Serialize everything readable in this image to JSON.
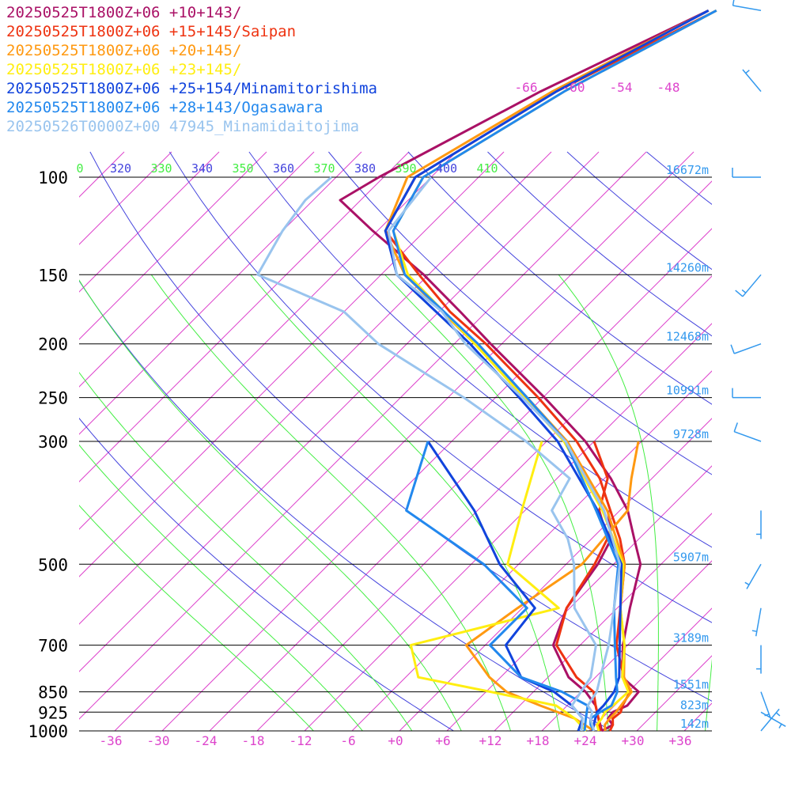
{
  "chart_data": {
    "type": "line",
    "title": "",
    "xlabel": "",
    "ylabel": "",
    "pressure_axis": {
      "type": "log",
      "ylim": [
        1000,
        100
      ],
      "ticks": [
        100,
        150,
        200,
        250,
        300,
        500,
        700,
        850,
        925,
        1000
      ]
    },
    "temperature_axis": {
      "xlim": [
        -40,
        40
      ],
      "ticks": [
        "-36",
        "-30",
        "-24",
        "-18",
        "-12",
        "-6",
        "+0",
        "+6",
        "+12",
        "+18",
        "+24",
        "+30",
        "+36"
      ]
    },
    "height_labels": [
      {
        "p": 100,
        "text": "16672m"
      },
      {
        "p": 150,
        "text": "14260m"
      },
      {
        "p": 200,
        "text": "12468m"
      },
      {
        "p": 250,
        "text": "10991m"
      },
      {
        "p": 300,
        "text": "9728m"
      },
      {
        "p": 500,
        "text": "5907m"
      },
      {
        "p": 700,
        "text": "3189m"
      },
      {
        "p": 850,
        "text": "1551m"
      },
      {
        "p": 925,
        "text": "823m"
      },
      {
        "p": 1000,
        "text": "142m"
      }
    ],
    "isotherm_labels": [
      "-66",
      "-60",
      "-54",
      "-48"
    ],
    "theta_labels": [
      {
        "text": "0",
        "color": "#44ee44"
      },
      {
        "text": "320",
        "color": "#4444dd"
      },
      {
        "text": "330",
        "color": "#44ee44"
      },
      {
        "text": "340",
        "color": "#4444dd"
      },
      {
        "text": "350",
        "color": "#44ee44"
      },
      {
        "text": "360",
        "color": "#4444dd"
      },
      {
        "text": "370",
        "color": "#44ee44"
      },
      {
        "text": "380",
        "color": "#4444dd"
      },
      {
        "text": "390",
        "color": "#44ee44"
      },
      {
        "text": "400",
        "color": "#4444dd"
      },
      {
        "text": "410",
        "color": "#44ee44"
      }
    ],
    "colors": {
      "isotherm": "#dd44cc",
      "dry_adiabat": "#4444dd",
      "moist_adiabat": "#44ee44",
      "isobar": "#000000",
      "height_label": "#3399ee",
      "wind_barb": "#3399ee"
    },
    "series": [
      {
        "name": "20250525T1800Z+06 +10+143/",
        "color": "#aa1166",
        "temperature": [
          [
            1000,
            25.6
          ],
          [
            975,
            26.2
          ],
          [
            950,
            24.8
          ],
          [
            925,
            24.6
          ],
          [
            900,
            25.6
          ],
          [
            850,
            25.3
          ],
          [
            800,
            21.4
          ],
          [
            700,
            17.4
          ],
          [
            600,
            13.6
          ],
          [
            500,
            9.4
          ],
          [
            450,
            5.4
          ],
          [
            400,
            1.0
          ],
          [
            350,
            -5.2
          ],
          [
            300,
            -13.1
          ],
          [
            250,
            -23.8
          ],
          [
            200,
            -37.4
          ],
          [
            175,
            -45.3
          ],
          [
            150,
            -54.6
          ],
          [
            125,
            -66.6
          ],
          [
            110,
            -74.6
          ],
          [
            100,
            -72.6
          ],
          [
            70,
            -63.0
          ],
          [
            50,
            -52.0
          ]
        ],
        "dewpoint": [
          [
            1000,
            25.6
          ],
          [
            950,
            23.6
          ],
          [
            900,
            21.6
          ],
          [
            850,
            18.6
          ],
          [
            800,
            14.6
          ],
          [
            700,
            8.6
          ],
          [
            600,
            5.6
          ],
          [
            500,
            4.0
          ],
          [
            450,
            2.5
          ],
          [
            400,
            -1.5
          ]
        ]
      },
      {
        "name": "20250525T1800Z+06 +15+145/Saipan",
        "color": "#ee3311",
        "temperature": [
          [
            1000,
            26.6
          ],
          [
            975,
            26.2
          ],
          [
            950,
            25.4
          ],
          [
            925,
            25.6
          ],
          [
            900,
            25.0
          ],
          [
            850,
            24.2
          ],
          [
            800,
            21.6
          ],
          [
            700,
            16.6
          ],
          [
            600,
            12.4
          ],
          [
            500,
            7.4
          ],
          [
            450,
            3.6
          ],
          [
            400,
            -1.2
          ],
          [
            350,
            -6.6
          ],
          [
            300,
            -14.2
          ],
          [
            250,
            -24.6
          ],
          [
            200,
            -38.0
          ],
          [
            175,
            -46.6
          ],
          [
            150,
            -55.2
          ],
          [
            125,
            -65.0
          ],
          [
            100,
            -68.0
          ],
          [
            70,
            -61.0
          ],
          [
            50,
            -51.0
          ]
        ],
        "dewpoint": [
          [
            1000,
            25.4
          ],
          [
            950,
            23.6
          ],
          [
            900,
            21.6
          ],
          [
            850,
            19.6
          ],
          [
            800,
            15.6
          ],
          [
            700,
            9.0
          ],
          [
            600,
            5.6
          ],
          [
            500,
            3.6
          ],
          [
            450,
            2.0
          ],
          [
            400,
            -2.6
          ],
          [
            350,
            -5.6
          ],
          [
            300,
            -12.0
          ]
        ]
      },
      {
        "name": "20250525T1800Z+06 +20+145/",
        "color": "#ff9911",
        "temperature": [
          [
            1000,
            26.0
          ],
          [
            975,
            25.2
          ],
          [
            950,
            25.0
          ],
          [
            925,
            25.0
          ],
          [
            900,
            24.8
          ],
          [
            850,
            24.4
          ],
          [
            800,
            21.6
          ],
          [
            700,
            17.6
          ],
          [
            600,
            12.4
          ],
          [
            500,
            7.4
          ],
          [
            400,
            -1.6
          ],
          [
            300,
            -15.4
          ],
          [
            250,
            -26.0
          ],
          [
            200,
            -39.4
          ],
          [
            150,
            -57.0
          ],
          [
            125,
            -65.0
          ],
          [
            100,
            -69.0
          ],
          [
            70,
            -61.5
          ],
          [
            50,
            -52.0
          ]
        ],
        "dewpoint": [
          [
            1000,
            24.6
          ],
          [
            950,
            20.6
          ],
          [
            900,
            14.6
          ],
          [
            850,
            8.6
          ],
          [
            800,
            4.6
          ],
          [
            700,
            -2.4
          ],
          [
            600,
            -0.6
          ],
          [
            500,
            2.0
          ],
          [
            400,
            1.0
          ],
          [
            350,
            -2.6
          ],
          [
            300,
            -6.4
          ]
        ]
      },
      {
        "name": "20250525T1800Z+06 +23+145/",
        "color": "#ffee11",
        "temperature": [
          [
            1000,
            25.2
          ],
          [
            975,
            24.2
          ],
          [
            950,
            24.0
          ],
          [
            925,
            23.6
          ],
          [
            900,
            23.8
          ],
          [
            850,
            24.0
          ],
          [
            800,
            21.4
          ],
          [
            700,
            17.6
          ],
          [
            600,
            12.4
          ],
          [
            500,
            7.2
          ],
          [
            400,
            -2.2
          ],
          [
            300,
            -15.8
          ],
          [
            250,
            -26.4
          ],
          [
            200,
            -39.4
          ],
          [
            150,
            -56.6
          ],
          [
            125,
            -64.0
          ],
          [
            100,
            -67.0
          ],
          [
            70,
            -60.0
          ],
          [
            50,
            -51.0
          ]
        ],
        "dewpoint": [
          [
            1000,
            23.6
          ],
          [
            950,
            20.6
          ],
          [
            900,
            16.6
          ],
          [
            850,
            6.6
          ],
          [
            800,
            -4.4
          ],
          [
            700,
            -9.4
          ],
          [
            600,
            4.6
          ],
          [
            500,
            -7.4
          ],
          [
            400,
            -12.4
          ],
          [
            300,
            -18.6
          ]
        ]
      },
      {
        "name": "20250525T1800Z+06 +25+154/Minamitorishima",
        "color": "#1144dd",
        "temperature": [
          [
            1000,
            24.4
          ],
          [
            975,
            23.8
          ],
          [
            950,
            23.2
          ],
          [
            925,
            22.6
          ],
          [
            900,
            22.6
          ],
          [
            850,
            22.2
          ],
          [
            800,
            21.0
          ],
          [
            700,
            17.0
          ],
          [
            600,
            12.4
          ],
          [
            500,
            7.0
          ],
          [
            400,
            -2.8
          ],
          [
            300,
            -16.6
          ],
          [
            250,
            -27.0
          ],
          [
            200,
            -40.0
          ],
          [
            150,
            -58.0
          ],
          [
            125,
            -65.0
          ],
          [
            100,
            -68.0
          ],
          [
            70,
            -61.0
          ],
          [
            50,
            -52.0
          ]
        ],
        "dewpoint": [
          [
            1000,
            22.6
          ],
          [
            950,
            21.6
          ],
          [
            900,
            18.6
          ],
          [
            850,
            14.6
          ],
          [
            800,
            8.6
          ],
          [
            700,
            2.6
          ],
          [
            600,
            1.6
          ],
          [
            500,
            -8.4
          ],
          [
            400,
            -18.4
          ],
          [
            300,
            -33.0
          ]
        ]
      },
      {
        "name": "20250525T1800Z+06 +28+143/Ogasawara",
        "color": "#2288ee",
        "temperature": [
          [
            1000,
            24.6
          ],
          [
            975,
            23.4
          ],
          [
            950,
            22.6
          ],
          [
            925,
            23.0
          ],
          [
            900,
            23.6
          ],
          [
            850,
            22.6
          ],
          [
            800,
            20.6
          ],
          [
            700,
            16.4
          ],
          [
            600,
            11.6
          ],
          [
            500,
            6.6
          ],
          [
            400,
            -3.0
          ],
          [
            300,
            -15.6
          ],
          [
            250,
            -26.0
          ],
          [
            200,
            -39.0
          ],
          [
            150,
            -57.0
          ],
          [
            125,
            -64.0
          ],
          [
            100,
            -67.0
          ],
          [
            70,
            -60.0
          ],
          [
            50,
            -51.0
          ]
        ],
        "dewpoint": [
          [
            1000,
            23.4
          ],
          [
            950,
            22.0
          ],
          [
            900,
            20.6
          ],
          [
            850,
            15.6
          ],
          [
            800,
            8.6
          ],
          [
            700,
            0.6
          ],
          [
            600,
            0.6
          ],
          [
            500,
            -10.4
          ],
          [
            400,
            -27.0
          ],
          [
            300,
            -33.0
          ]
        ]
      },
      {
        "name": "20250526T0000Z+00 47945_Minamidaitojima",
        "color": "#99c4ee",
        "temperature": [
          [
            1000,
            24.6
          ],
          [
            975,
            23.6
          ],
          [
            950,
            22.6
          ],
          [
            925,
            22.0
          ],
          [
            900,
            20.6
          ],
          [
            850,
            20.0
          ],
          [
            800,
            18.6
          ],
          [
            700,
            15.6
          ],
          [
            600,
            11.6
          ],
          [
            500,
            6.8
          ],
          [
            400,
            -2.0
          ],
          [
            300,
            -15.6
          ],
          [
            250,
            -26.6
          ],
          [
            200,
            -40.6
          ],
          [
            175,
            -47.6
          ],
          [
            150,
            -58.0
          ],
          [
            125,
            -64.6
          ],
          [
            100,
            -66.0
          ]
        ],
        "dewpoint": [
          [
            1000,
            23.0
          ],
          [
            950,
            21.6
          ],
          [
            900,
            18.6
          ],
          [
            850,
            18.0
          ],
          [
            800,
            17.4
          ],
          [
            700,
            14.0
          ],
          [
            600,
            6.6
          ],
          [
            500,
            1.0
          ],
          [
            450,
            -3.0
          ],
          [
            400,
            -8.6
          ],
          [
            350,
            -10.4
          ],
          [
            300,
            -20.6
          ],
          [
            250,
            -34.0
          ],
          [
            200,
            -51.6
          ],
          [
            175,
            -60.0
          ],
          [
            150,
            -75.6
          ],
          [
            125,
            -78.0
          ],
          [
            110,
            -79.0
          ],
          [
            100,
            -78.6
          ]
        ]
      }
    ],
    "wind_barbs": [
      {
        "p": 50,
        "dir": 280,
        "speed": 10
      },
      {
        "p": 70,
        "dir": 320,
        "speed": 5
      },
      {
        "p": 100,
        "dir": 270,
        "speed": 10
      },
      {
        "p": 150,
        "dir": 220,
        "speed": 15
      },
      {
        "p": 200,
        "dir": 250,
        "speed": 10
      },
      {
        "p": 250,
        "dir": 270,
        "speed": 10
      },
      {
        "p": 300,
        "dir": 290,
        "speed": 10
      },
      {
        "p": 400,
        "dir": 180,
        "speed": 5
      },
      {
        "p": 500,
        "dir": 210,
        "speed": 5
      },
      {
        "p": 600,
        "dir": 190,
        "speed": 5
      },
      {
        "p": 700,
        "dir": 180,
        "speed": 5
      },
      {
        "p": 850,
        "dir": 160,
        "speed": 5
      },
      {
        "p": 925,
        "dir": 120,
        "speed": 5
      },
      {
        "p": 1000,
        "dir": 40,
        "speed": 5
      }
    ]
  }
}
